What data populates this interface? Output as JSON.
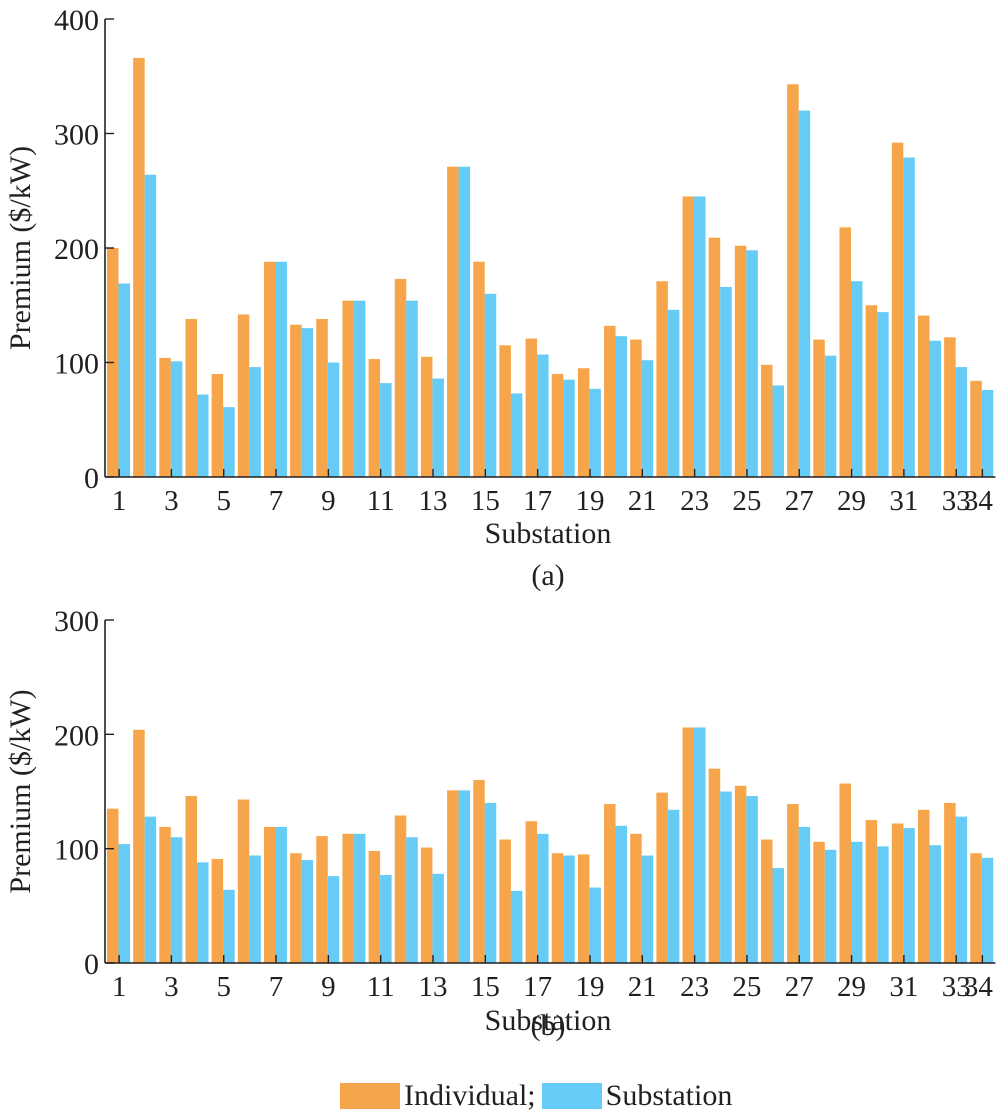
{
  "colors": {
    "individual": "#F7A54B",
    "substation": "#66CCF5",
    "axis": "#231F20"
  },
  "legend": {
    "items": [
      "Individual;",
      "Substation"
    ]
  },
  "chart_data": [
    {
      "type": "bar",
      "caption": "(a)",
      "xlabel": "Substation",
      "ylabel": "Premium ($/kW)",
      "ylim": [
        0,
        400
      ],
      "yticks": [
        0,
        100,
        200,
        300,
        400
      ],
      "xtick_labels": [
        "1",
        "3",
        "5",
        "7",
        "9",
        "11",
        "13",
        "15",
        "17",
        "19",
        "21",
        "23",
        "25",
        "27",
        "29",
        "31",
        "33",
        "34"
      ],
      "categories": [
        1,
        2,
        3,
        4,
        5,
        6,
        7,
        8,
        9,
        10,
        11,
        12,
        13,
        14,
        15,
        16,
        17,
        18,
        19,
        20,
        21,
        22,
        23,
        24,
        25,
        26,
        27,
        28,
        29,
        30,
        31,
        32,
        33,
        34
      ],
      "series": [
        {
          "name": "Individual",
          "values": [
            200,
            366,
            104,
            138,
            90,
            142,
            188,
            133,
            138,
            154,
            103,
            173,
            105,
            271,
            188,
            115,
            121,
            90,
            95,
            132,
            120,
            171,
            245,
            209,
            202,
            98,
            343,
            120,
            218,
            150,
            292,
            141,
            122,
            84
          ]
        },
        {
          "name": "Substation",
          "values": [
            169,
            264,
            101,
            72,
            61,
            96,
            188,
            130,
            100,
            154,
            82,
            154,
            86,
            271,
            160,
            73,
            107,
            85,
            77,
            123,
            102,
            146,
            245,
            166,
            198,
            80,
            320,
            106,
            171,
            144,
            279,
            119,
            96,
            76
          ]
        }
      ]
    },
    {
      "type": "bar",
      "caption": "(b)",
      "xlabel": "Substation",
      "ylabel": "Premium ($/kW)",
      "ylim": [
        0,
        300
      ],
      "yticks": [
        0,
        100,
        200,
        300
      ],
      "xtick_labels": [
        "1",
        "3",
        "5",
        "7",
        "9",
        "11",
        "13",
        "15",
        "17",
        "19",
        "21",
        "23",
        "25",
        "27",
        "29",
        "31",
        "33",
        "34"
      ],
      "categories": [
        1,
        2,
        3,
        4,
        5,
        6,
        7,
        8,
        9,
        10,
        11,
        12,
        13,
        14,
        15,
        16,
        17,
        18,
        19,
        20,
        21,
        22,
        23,
        24,
        25,
        26,
        27,
        28,
        29,
        30,
        31,
        32,
        33,
        34
      ],
      "series": [
        {
          "name": "Individual",
          "values": [
            135,
            204,
            119,
            146,
            91,
            143,
            119,
            96,
            111,
            113,
            98,
            129,
            101,
            151,
            160,
            108,
            124,
            96,
            95,
            139,
            113,
            149,
            206,
            170,
            155,
            108,
            139,
            106,
            157,
            125,
            122,
            134,
            140,
            96
          ]
        },
        {
          "name": "Substation",
          "values": [
            104,
            128,
            110,
            88,
            64,
            94,
            119,
            90,
            76,
            113,
            77,
            110,
            78,
            151,
            140,
            63,
            113,
            94,
            66,
            120,
            94,
            134,
            206,
            150,
            146,
            83,
            119,
            99,
            106,
            102,
            118,
            103,
            128,
            92
          ]
        }
      ]
    }
  ]
}
